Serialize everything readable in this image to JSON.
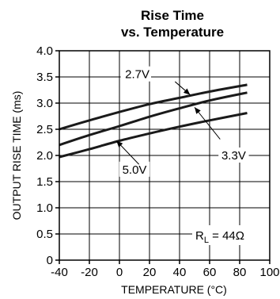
{
  "chart_data": {
    "type": "line",
    "title": [
      "Rise Time",
      "vs. Temperature"
    ],
    "xlabel": "TEMPERATURE (°C)",
    "ylabel": "OUTPUT RISE TIME (ms)",
    "xlim": [
      -40,
      100
    ],
    "ylim": [
      0,
      4.0
    ],
    "xticks": [
      -40,
      -20,
      0,
      20,
      40,
      60,
      80,
      100
    ],
    "xtick_labels": [
      "-40",
      "-20",
      "0",
      "20",
      "40",
      "60",
      "80",
      "100"
    ],
    "yticks": [
      0,
      0.5,
      1.0,
      1.5,
      2.0,
      2.5,
      3.0,
      3.5,
      4.0
    ],
    "ytick_labels": [
      "0",
      "0.5",
      "1.0",
      "1.5",
      "2.0",
      "2.5",
      "3.0",
      "3.5",
      "4.0"
    ],
    "grid": true,
    "series": [
      {
        "name": "2.7V",
        "x": [
          -40,
          -20,
          0,
          20,
          40,
          60,
          85
        ],
        "y": [
          2.5,
          2.67,
          2.83,
          2.98,
          3.1,
          3.22,
          3.35
        ]
      },
      {
        "name": "3.3V",
        "x": [
          -40,
          -20,
          0,
          20,
          40,
          60,
          85
        ],
        "y": [
          2.2,
          2.39,
          2.56,
          2.74,
          2.9,
          3.05,
          3.2
        ]
      },
      {
        "name": "5.0V",
        "x": [
          -40,
          -20,
          0,
          20,
          40,
          60,
          85
        ],
        "y": [
          1.97,
          2.12,
          2.28,
          2.42,
          2.55,
          2.67,
          2.81
        ]
      }
    ],
    "annotations": {
      "condition_main": "R",
      "condition_sub": "L",
      "condition_rest": " = 44Ω"
    },
    "line_color": "#1a1a1a"
  }
}
